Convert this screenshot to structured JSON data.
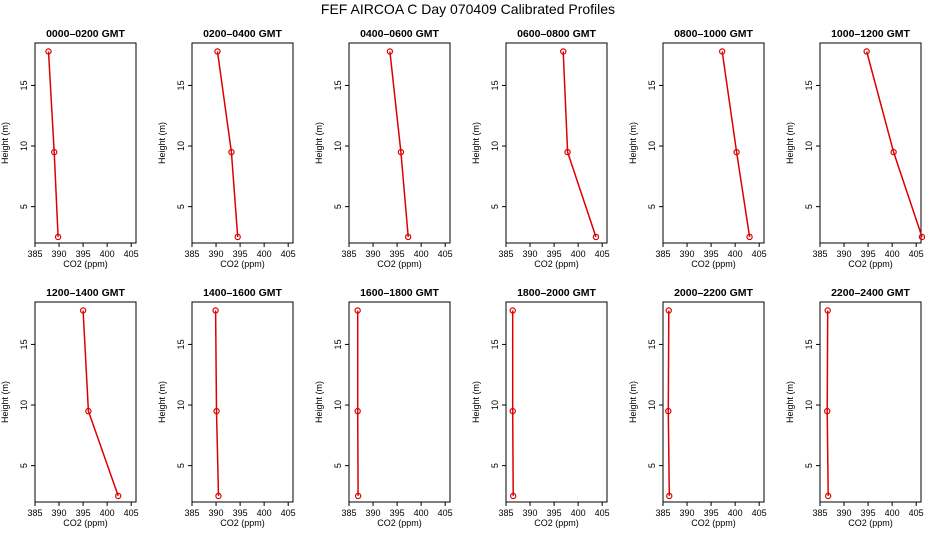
{
  "figure": {
    "title": "FEF AIRCOA C  Day 070409  Calibrated Profiles"
  },
  "colors": {
    "series": "#dd0000",
    "axis": "#000000",
    "background": "#ffffff"
  },
  "chart_data": [
    {
      "type": "line",
      "title": "0000–0200 GMT",
      "xlabel": "CO2 (ppm)",
      "ylabel": "Height (m)",
      "xlim": [
        385,
        406
      ],
      "ylim": [
        2,
        18.5
      ],
      "xticks": [
        385,
        390,
        395,
        400,
        405
      ],
      "yticks": [
        5,
        10,
        15
      ],
      "series": [
        {
          "name": "profile",
          "x": [
            389.8,
            389.0,
            387.8
          ],
          "y": [
            2.5,
            9.5,
            17.8
          ]
        }
      ]
    },
    {
      "type": "line",
      "title": "0200–0400 GMT",
      "xlabel": "CO2 (ppm)",
      "ylabel": "Height (m)",
      "xlim": [
        385,
        406
      ],
      "ylim": [
        2,
        18.5
      ],
      "xticks": [
        385,
        390,
        395,
        400,
        405
      ],
      "yticks": [
        5,
        10,
        15
      ],
      "series": [
        {
          "name": "profile",
          "x": [
            394.5,
            393.2,
            390.3
          ],
          "y": [
            2.5,
            9.5,
            17.8
          ]
        }
      ]
    },
    {
      "type": "line",
      "title": "0400–0600 GMT",
      "xlabel": "CO2 (ppm)",
      "ylabel": "Height (m)",
      "xlim": [
        385,
        406
      ],
      "ylim": [
        2,
        18.5
      ],
      "xticks": [
        385,
        390,
        395,
        400,
        405
      ],
      "yticks": [
        5,
        10,
        15
      ],
      "series": [
        {
          "name": "profile",
          "x": [
            397.3,
            395.8,
            393.5
          ],
          "y": [
            2.5,
            9.5,
            17.8
          ]
        }
      ]
    },
    {
      "type": "line",
      "title": "0600–0800 GMT",
      "xlabel": "CO2 (ppm)",
      "ylabel": "Height (m)",
      "xlim": [
        385,
        406
      ],
      "ylim": [
        2,
        18.5
      ],
      "xticks": [
        385,
        390,
        395,
        400,
        405
      ],
      "yticks": [
        5,
        10,
        15
      ],
      "series": [
        {
          "name": "profile",
          "x": [
            403.7,
            397.8,
            396.9
          ],
          "y": [
            2.5,
            9.5,
            17.8
          ]
        }
      ]
    },
    {
      "type": "line",
      "title": "0800–1000 GMT",
      "xlabel": "CO2 (ppm)",
      "ylabel": "Height (m)",
      "xlim": [
        385,
        406
      ],
      "ylim": [
        2,
        18.5
      ],
      "xticks": [
        385,
        390,
        395,
        400,
        405
      ],
      "yticks": [
        5,
        10,
        15
      ],
      "series": [
        {
          "name": "profile",
          "x": [
            403.0,
            400.3,
            397.3
          ],
          "y": [
            2.5,
            9.5,
            17.8
          ]
        }
      ]
    },
    {
      "type": "line",
      "title": "1000–1200 GMT",
      "xlabel": "CO2 (ppm)",
      "ylabel": "Height (m)",
      "xlim": [
        385,
        406
      ],
      "ylim": [
        2,
        18.5
      ],
      "xticks": [
        385,
        390,
        395,
        400,
        405
      ],
      "yticks": [
        5,
        10,
        15
      ],
      "series": [
        {
          "name": "profile",
          "x": [
            406.2,
            400.3,
            394.7
          ],
          "y": [
            2.5,
            9.5,
            17.8
          ]
        }
      ]
    },
    {
      "type": "line",
      "title": "1200–1400 GMT",
      "xlabel": "CO2 (ppm)",
      "ylabel": "Height (m)",
      "xlim": [
        385,
        406
      ],
      "ylim": [
        2,
        18.5
      ],
      "xticks": [
        385,
        390,
        395,
        400,
        405
      ],
      "yticks": [
        5,
        10,
        15
      ],
      "series": [
        {
          "name": "profile",
          "x": [
            402.3,
            396.1,
            395.0
          ],
          "y": [
            2.5,
            9.5,
            17.8
          ]
        }
      ]
    },
    {
      "type": "line",
      "title": "1400–1600 GMT",
      "xlabel": "CO2 (ppm)",
      "ylabel": "Height (m)",
      "xlim": [
        385,
        406
      ],
      "ylim": [
        2,
        18.5
      ],
      "xticks": [
        385,
        390,
        395,
        400,
        405
      ],
      "yticks": [
        5,
        10,
        15
      ],
      "series": [
        {
          "name": "profile",
          "x": [
            390.5,
            390.1,
            389.9
          ],
          "y": [
            2.5,
            9.5,
            17.8
          ]
        }
      ]
    },
    {
      "type": "line",
      "title": "1600–1800 GMT",
      "xlabel": "CO2 (ppm)",
      "ylabel": "Height (m)",
      "xlim": [
        385,
        406
      ],
      "ylim": [
        2,
        18.5
      ],
      "xticks": [
        385,
        390,
        395,
        400,
        405
      ],
      "yticks": [
        5,
        10,
        15
      ],
      "series": [
        {
          "name": "profile",
          "x": [
            386.9,
            386.8,
            386.8
          ],
          "y": [
            2.5,
            9.5,
            17.8
          ]
        }
      ]
    },
    {
      "type": "line",
      "title": "1800–2000 GMT",
      "xlabel": "CO2 (ppm)",
      "ylabel": "Height (m)",
      "xlim": [
        385,
        406
      ],
      "ylim": [
        2,
        18.5
      ],
      "xticks": [
        385,
        390,
        395,
        400,
        405
      ],
      "yticks": [
        5,
        10,
        15
      ],
      "series": [
        {
          "name": "profile",
          "x": [
            386.5,
            386.4,
            386.4
          ],
          "y": [
            2.5,
            9.5,
            17.8
          ]
        }
      ]
    },
    {
      "type": "line",
      "title": "2000–2200 GMT",
      "xlabel": "CO2 (ppm)",
      "ylabel": "Height (m)",
      "xlim": [
        385,
        406
      ],
      "ylim": [
        2,
        18.5
      ],
      "xticks": [
        385,
        390,
        395,
        400,
        405
      ],
      "yticks": [
        5,
        10,
        15
      ],
      "series": [
        {
          "name": "profile",
          "x": [
            386.3,
            386.1,
            386.2
          ],
          "y": [
            2.5,
            9.5,
            17.8
          ]
        }
      ]
    },
    {
      "type": "line",
      "title": "2200–2400 GMT",
      "xlabel": "CO2 (ppm)",
      "ylabel": "Height (m)",
      "xlim": [
        385,
        406
      ],
      "ylim": [
        2,
        18.5
      ],
      "xticks": [
        385,
        390,
        395,
        400,
        405
      ],
      "yticks": [
        5,
        10,
        15
      ],
      "series": [
        {
          "name": "profile",
          "x": [
            386.7,
            386.5,
            386.6
          ],
          "y": [
            2.5,
            9.5,
            17.8
          ]
        }
      ]
    }
  ]
}
